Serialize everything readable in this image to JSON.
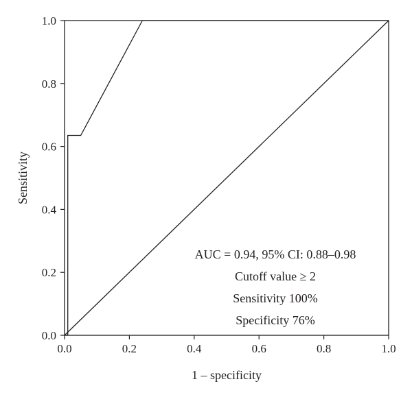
{
  "chart_data": {
    "type": "line",
    "xlabel": "1 – specificity",
    "ylabel": "Sensitivity",
    "xlim": [
      0,
      1
    ],
    "ylim": [
      0,
      1
    ],
    "x_ticks": [
      "0.0",
      "0.2",
      "0.4",
      "0.6",
      "0.8",
      "1.0"
    ],
    "y_ticks": [
      "0.0",
      "0.2",
      "0.4",
      "0.6",
      "0.8",
      "1.0"
    ],
    "grid": false,
    "series": [
      {
        "x": [
          0.0,
          0.0,
          0.01,
          0.01,
          0.05,
          0.24,
          1.0
        ],
        "y": [
          0.0,
          0.0,
          0.0,
          0.635,
          0.635,
          1.0,
          1.0
        ]
      },
      {
        "x": [
          0.0,
          1.0
        ],
        "y": [
          0.0,
          1.0
        ]
      }
    ],
    "annotations": [
      "AUC = 0.94, 95% CI: 0.88–0.98",
      "Cutoff value ≥ 2",
      "Sensitivity 100%",
      "Specificity 76%"
    ],
    "colors": {
      "line": "#231f20",
      "axis": "#231f20"
    }
  }
}
